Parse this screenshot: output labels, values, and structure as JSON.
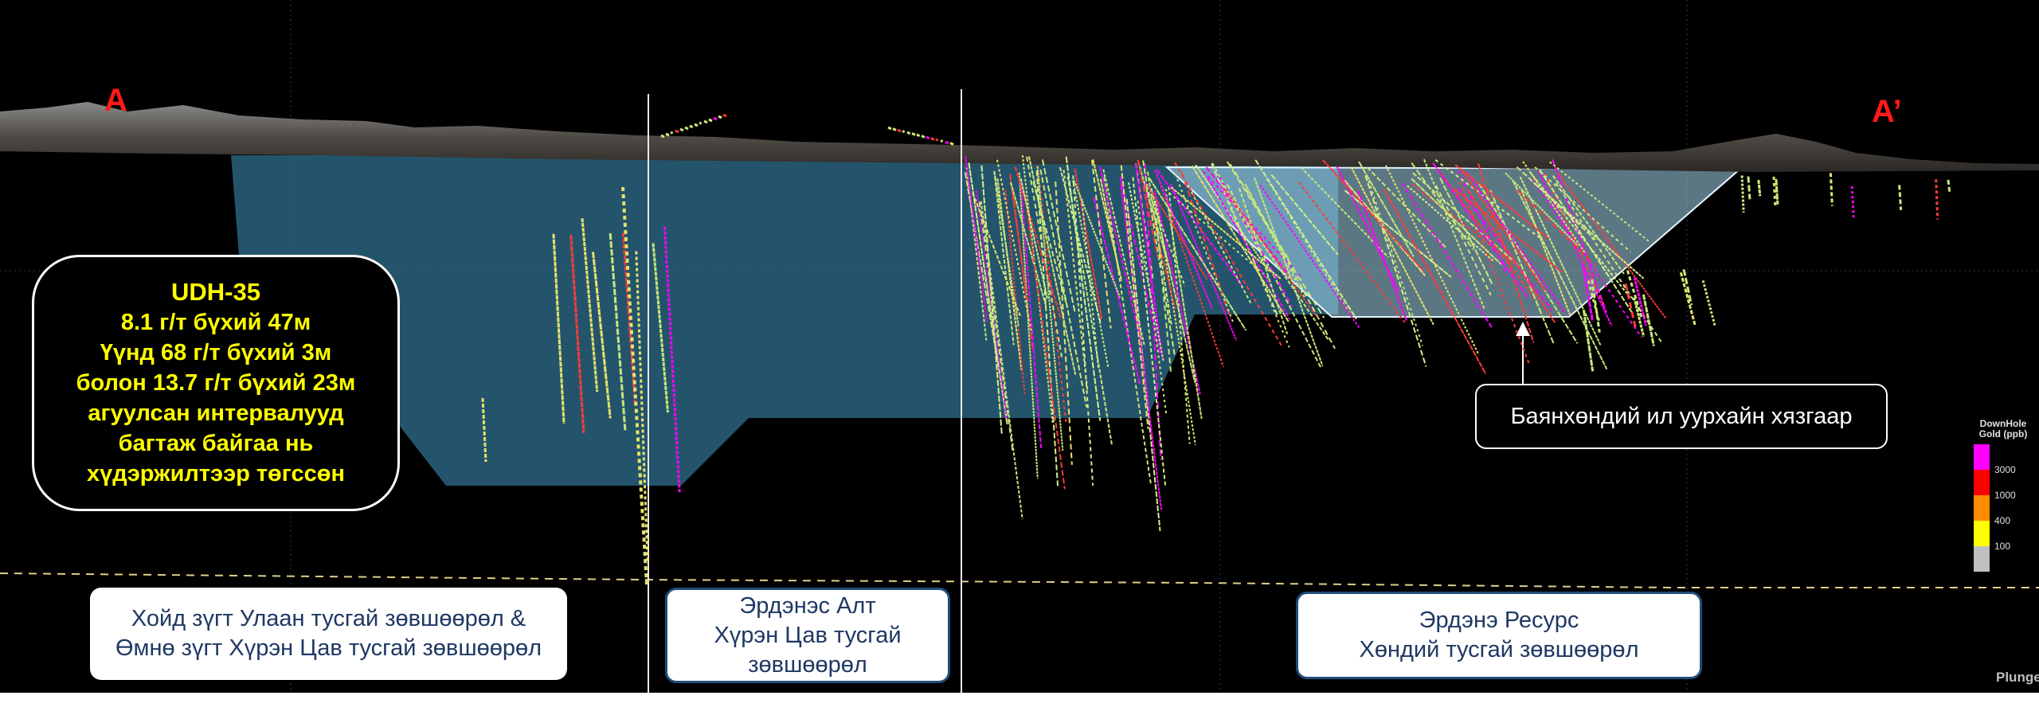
{
  "section": {
    "left_end": "A",
    "right_end": "A’"
  },
  "callout": {
    "hole": "UDH-35",
    "line1": "8.1 г/т бүхий 47м",
    "line2": "Үүнд 68 г/т бүхий 3м",
    "line3": "болон 13.7 г/т бүхий 23м",
    "line4": "агуулсан интервалууд",
    "line5": "багтаж байгаа нь",
    "line6": "хүдэржилтээр төгссөн"
  },
  "pit_limit_label": "Баянхөндий ил уурхайн хязгаар",
  "licenses": [
    {
      "line1": "Хойд зүгт Улаан тусгай зөвшөөрөл &",
      "line2": "Өмнө зүгт Хүрэн Цав тусгай зөвшөөрөл"
    },
    {
      "line1": "Эрдэнэс Алт",
      "line2": "Хүрэн Цав тусгай",
      "line3": "зөвшөөрөл"
    },
    {
      "line1": "Эрдэнэ Ресурс",
      "line2": "Хөндий тусгай зөвшөөрөл"
    }
  ],
  "legend": {
    "title_line1": "DownHole",
    "title_line2": "Gold (ppb)",
    "labels": [
      "3000",
      "1000",
      "400",
      "100"
    ],
    "colors": [
      "#ff00ff",
      "#ff0000",
      "#ff8c00",
      "#ffff00",
      "#bfbfbf"
    ]
  },
  "corner_text": "Plunge",
  "colors": {
    "background": "#000000",
    "resource_shell": "#2e6b8a",
    "pit_shell": "#a8d8f0",
    "drill_trace": "#c8e87a",
    "callout_text": "#ffff00",
    "license_text": "#1f3864",
    "end_labels": "#ff1a1a"
  }
}
